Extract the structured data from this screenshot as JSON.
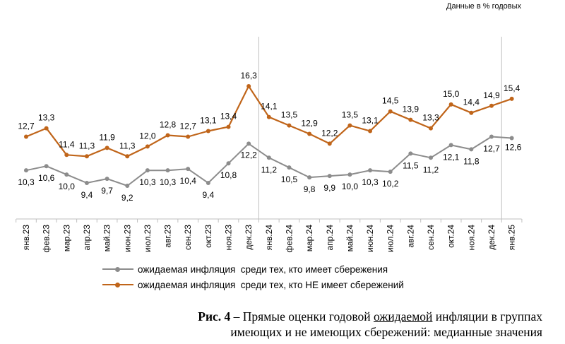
{
  "units_note": "Данные в % годовых",
  "caption": {
    "label": "Рис. 4",
    "text_before": " – Прямые оценки годовой ",
    "underlined": "ожидаемой",
    "text_after": " инфляции в группах",
    "line2": "имеющих и не имеющих сбережений: медианные значения"
  },
  "chart_data": {
    "type": "line",
    "categories": [
      "янв.23",
      "фев.23",
      "мар.23",
      "апр.23",
      "май.23",
      "июн.23",
      "июл.23",
      "авг.23",
      "сен.23",
      "окт.23",
      "ноя.23",
      "дек.23",
      "янв.24",
      "фев.24",
      "мар.24",
      "апр.24",
      "май.24",
      "июн.24",
      "июл.24",
      "авг.24",
      "сен.24",
      "окт.24",
      "ноя.24",
      "дек.24",
      "янв.25"
    ],
    "series": [
      {
        "name": "ожидаемая инфляция  среди тех, кто имеет сбережения",
        "color": "#8c8c8c",
        "values": [
          10.3,
          10.6,
          10.0,
          9.4,
          9.7,
          9.2,
          10.3,
          10.3,
          10.4,
          9.4,
          10.8,
          12.2,
          11.2,
          10.5,
          9.8,
          9.9,
          10.0,
          10.3,
          10.2,
          11.5,
          11.2,
          12.1,
          11.8,
          12.7,
          12.6
        ]
      },
      {
        "name": "ожидаемая инфляция  среди тех, кто НЕ имеет сбережений",
        "color": "#c0651a",
        "values": [
          12.7,
          13.3,
          11.4,
          11.3,
          11.9,
          11.3,
          12.0,
          12.8,
          12.7,
          13.1,
          13.4,
          16.3,
          14.1,
          13.5,
          12.9,
          12.2,
          13.5,
          13.1,
          14.5,
          13.9,
          13.3,
          15.0,
          14.4,
          14.9,
          15.4
        ]
      }
    ],
    "labels_gray": [
      "10,3",
      "10,6",
      "10,0",
      "9,4",
      "9,7",
      "9,2",
      "10,3",
      "10,3",
      "10,4",
      "9,4",
      "10,8",
      "12,2",
      "11,2",
      "10,5",
      "9,8",
      "9,9",
      "10,0",
      "10,3",
      "10,2",
      "11,5",
      "11,2",
      "12,1",
      "11,8",
      "12,7",
      "12,6"
    ],
    "labels_orange": [
      "12,7",
      "13,3",
      "11,4",
      "11,3",
      "11,9",
      "11,3",
      "12,0",
      "12,8",
      "12,7",
      "13,1",
      "13,4",
      "16,3",
      "14,1",
      "13,5",
      "12,9",
      "12,2",
      "13,5",
      "13,1",
      "14,5",
      "13,9",
      "13,3",
      "15,0",
      "14,4",
      "14,9",
      "15,4"
    ],
    "year_separators_after": [
      "дек.23",
      "дек.24"
    ],
    "grid": false,
    "legend_position": "bottom"
  }
}
